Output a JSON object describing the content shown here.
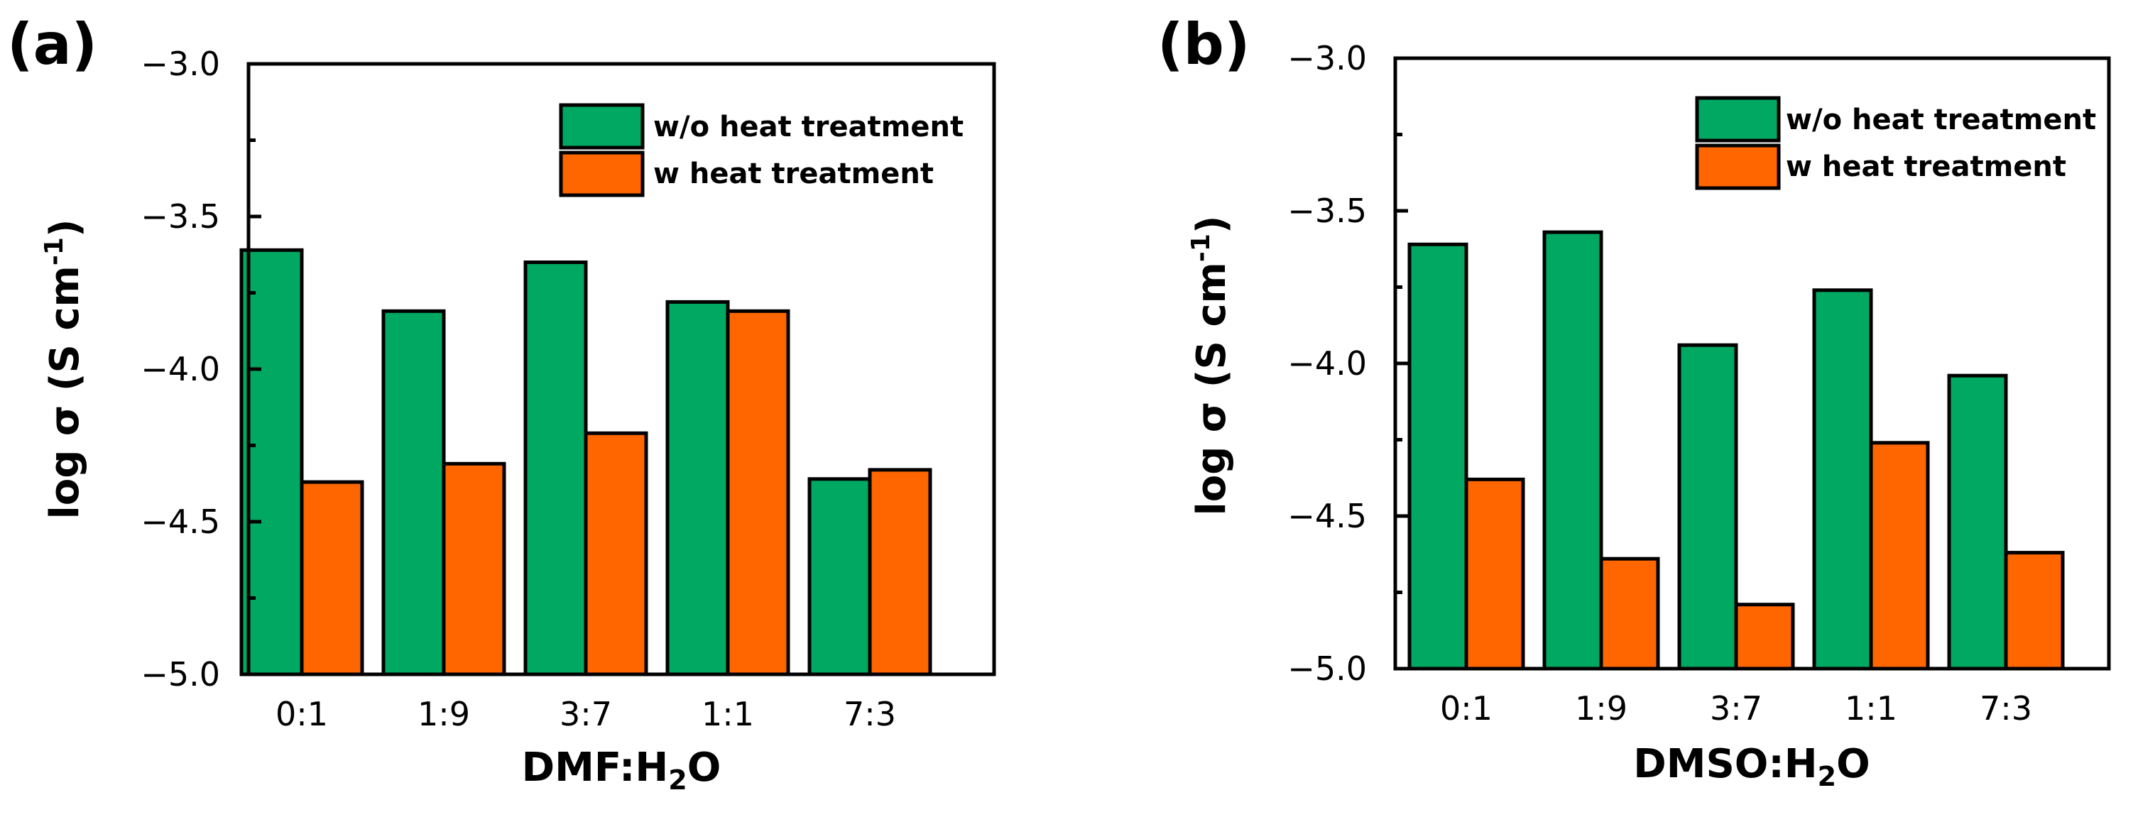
{
  "colors": {
    "without_heat": "#00a862",
    "with_heat": "#ff6600"
  },
  "chart_data": [
    {
      "type": "bar",
      "panel_label": "(a)",
      "categories": [
        "0:1",
        "1:9",
        "3:7",
        "1:1",
        "7:3"
      ],
      "series": [
        {
          "name": "w/o heat treatment",
          "values": [
            -3.61,
            -3.81,
            -3.65,
            -3.78,
            -4.36
          ]
        },
        {
          "name": "w heat treatment",
          "values": [
            -4.37,
            -4.31,
            -4.21,
            -3.81,
            -4.33
          ]
        }
      ],
      "xlabel_main": "DMF:H",
      "xlabel_sub": "2",
      "xlabel_tail": "O",
      "ylabel_main": "log σ (S cm",
      "ylabel_sup": "-1",
      "ylabel_tail": ")",
      "ylim": [
        -5.0,
        -3.0
      ],
      "yticks": [
        "−3.0",
        "−3.5",
        "−4.0",
        "−4.5",
        "−5.0"
      ],
      "legend_position": "top-right"
    },
    {
      "type": "bar",
      "panel_label": "(b)",
      "categories": [
        "0:1",
        "1:9",
        "3:7",
        "1:1",
        "7:3"
      ],
      "series": [
        {
          "name": "w/o heat treatment",
          "values": [
            -3.61,
            -3.57,
            -3.94,
            -3.76,
            -4.04
          ]
        },
        {
          "name": "w heat treatment",
          "values": [
            -4.38,
            -4.64,
            -4.79,
            -4.26,
            -4.62
          ]
        }
      ],
      "xlabel_main": "DMSO:H",
      "xlabel_sub": "2",
      "xlabel_tail": "O",
      "ylabel_main": "log σ (S cm",
      "ylabel_sup": "-1",
      "ylabel_tail": ")",
      "ylim": [
        -5.0,
        -3.0
      ],
      "yticks": [
        "−3.0",
        "−3.5",
        "−4.0",
        "−4.5",
        "−5.0"
      ],
      "legend_position": "top-right"
    }
  ]
}
